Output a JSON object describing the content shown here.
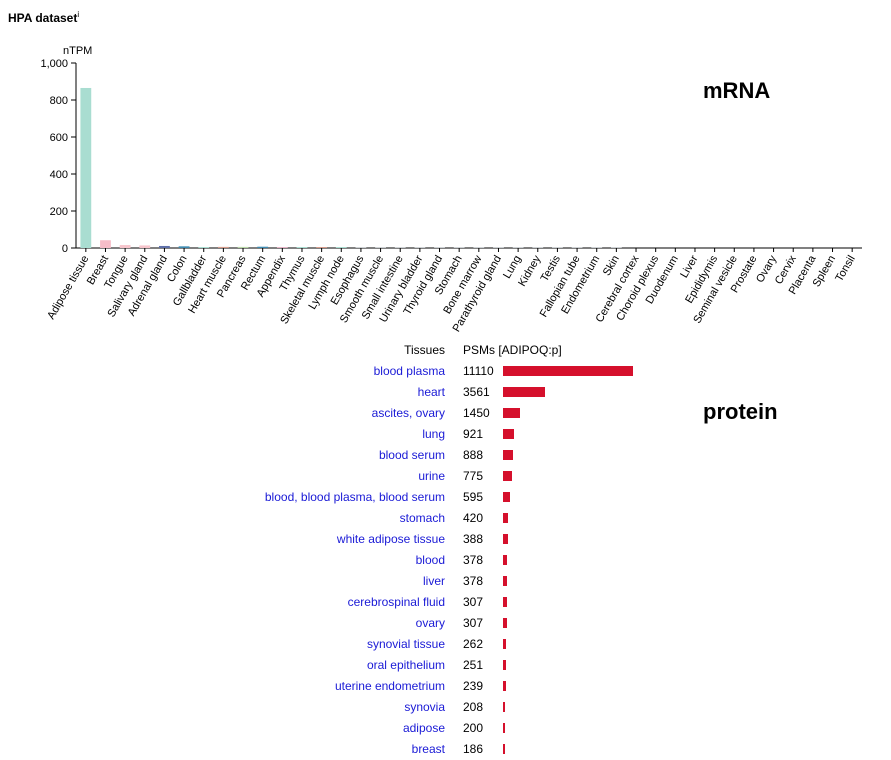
{
  "header": {
    "title": "HPA dataset",
    "info_marker": "i"
  },
  "labels": {
    "mrna": "mRNA",
    "protein": "protein"
  },
  "colors": {
    "protein_bar": "#d5102c",
    "link": "#1a1ad6"
  },
  "chart_data": [
    {
      "type": "bar",
      "ylabel": "nTPM",
      "ylim": [
        0,
        1000
      ],
      "yticks": [
        "0",
        "200",
        "400",
        "600",
        "800",
        "1,000"
      ],
      "yticks_values": [
        0,
        200,
        400,
        600,
        800,
        1000
      ],
      "categories": [
        "Adipose tissue",
        "Breast",
        "Tongue",
        "Salivary gland",
        "Adrenal gland",
        "Colon",
        "Gallbladder",
        "Heart muscle",
        "Pancreas",
        "Rectum",
        "Appendix",
        "Thymus",
        "Skeletal muscle",
        "Lymph node",
        "Esophagus",
        "Smooth muscle",
        "Small intestine",
        "Urinary bladder",
        "Thyroid gland",
        "Stomach",
        "Bone marrow",
        "Parathyroid gland",
        "Lung",
        "Kidney",
        "Testis",
        "Fallopian tube",
        "Endometrium",
        "Skin",
        "Cerebral cortex",
        "Choroid plexus",
        "Duodenum",
        "Liver",
        "Epididymis",
        "Seminal vesicle",
        "Prostate",
        "Ovary",
        "Cervix",
        "Placenta",
        "Spleen",
        "Tonsil"
      ],
      "values": [
        865,
        42,
        16,
        14,
        11,
        9,
        4,
        6,
        6,
        7,
        5,
        3,
        2,
        2,
        2,
        1,
        1,
        1,
        1,
        1,
        1,
        1,
        1,
        1,
        1,
        1,
        1,
        1,
        0,
        0,
        0,
        0,
        0,
        0,
        0,
        0,
        0,
        0,
        0,
        0
      ],
      "colors": [
        "#a9ddd1",
        "#f6bdc8",
        "#f7c5cc",
        "#f7c5cc",
        "#5e6fa8",
        "#3d8ab0",
        "#a9ddd1",
        "#d79c8c",
        "#b9d8a8",
        "#3d8ab0",
        "#e6b3c6",
        "#a9ddd1",
        "#d79c8c",
        "#a9ddd1",
        "#cdd1d4",
        "#cdd1d4",
        "#cdd1d4",
        "#cdd1d4",
        "#cdd1d4",
        "#cdd1d4",
        "#cdd1d4",
        "#cdd1d4",
        "#cdd1d4",
        "#cdd1d4",
        "#cdd1d4",
        "#cdd1d4",
        "#cdd1d4",
        "#cdd1d4",
        "#cdd1d4",
        "#cdd1d4",
        "#cdd1d4",
        "#cdd1d4",
        "#cdd1d4",
        "#cdd1d4",
        "#cdd1d4",
        "#cdd1d4",
        "#cdd1d4",
        "#cdd1d4",
        "#cdd1d4",
        "#cdd1d4"
      ]
    },
    {
      "type": "bar",
      "orientation": "horizontal",
      "xlabel": "PSMs [ADIPOQ:p]",
      "categories_header": "Tissues",
      "categories": [
        "blood plasma",
        "heart",
        "ascites, ovary",
        "lung",
        "blood serum",
        "urine",
        "blood, blood plasma, blood serum",
        "stomach",
        "white adipose tissue",
        "blood",
        "liver",
        "cerebrospinal fluid",
        "ovary",
        "synovial tissue",
        "oral epithelium",
        "uterine endometrium",
        "synovia",
        "adipose",
        "breast"
      ],
      "values": [
        11110,
        3561,
        1450,
        921,
        888,
        775,
        595,
        420,
        388,
        378,
        378,
        307,
        307,
        262,
        251,
        239,
        208,
        200,
        186
      ]
    }
  ]
}
